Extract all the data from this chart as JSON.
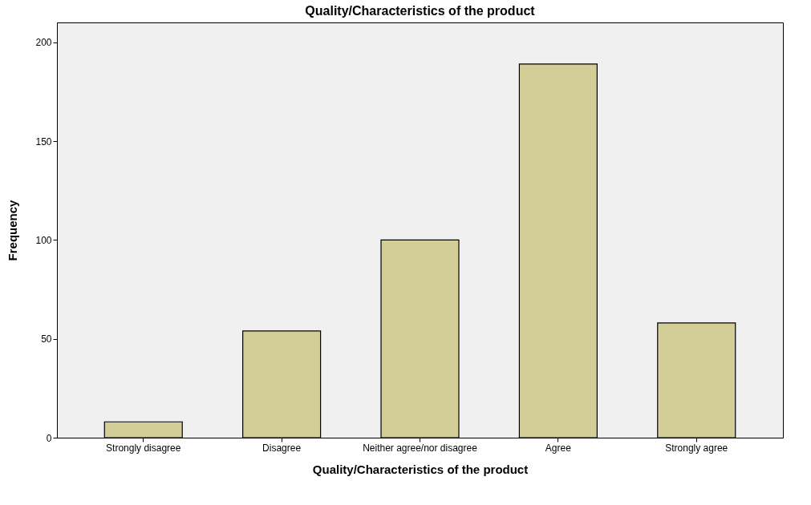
{
  "chart_data": {
    "type": "bar",
    "title": "Quality/Characteristics of the product",
    "xlabel": "Quality/Characteristics of the product",
    "ylabel": "Frequency",
    "categories": [
      "Strongly disagree",
      "Disagree",
      "Neither agree/nor disagree",
      "Agree",
      "Strongly agree"
    ],
    "values": [
      8,
      54,
      100,
      189,
      58
    ],
    "color": "#d3ce97",
    "ylim": [
      0,
      210
    ],
    "yticks": [
      0,
      50,
      100,
      150,
      200
    ],
    "grid": false
  }
}
